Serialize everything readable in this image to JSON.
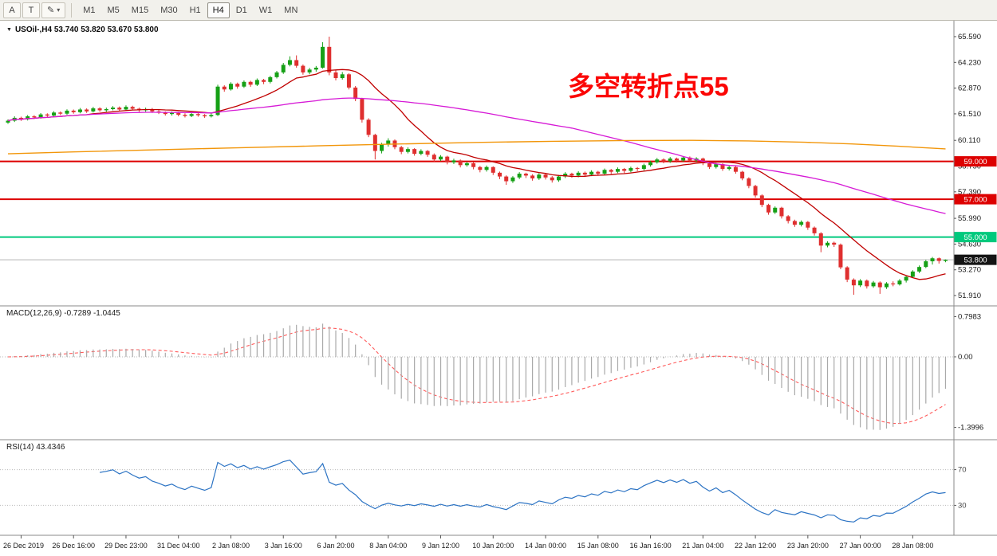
{
  "toolbar": {
    "tools": [
      {
        "label": "A"
      },
      {
        "label": "T"
      },
      {
        "label": "✎",
        "caret": "▾"
      }
    ],
    "timeframes": [
      {
        "label": "M1"
      },
      {
        "label": "M5"
      },
      {
        "label": "M15"
      },
      {
        "label": "M30"
      },
      {
        "label": "H1"
      },
      {
        "label": "H4",
        "active": true
      },
      {
        "label": "D1"
      },
      {
        "label": "W1"
      },
      {
        "label": "MN"
      }
    ]
  },
  "chart": {
    "collapse_icon": "▼",
    "symbol_line": "USOil-,H4 53.740 53.820 53.670 53.800",
    "annotation": {
      "text": "多空转折点55",
      "color": "#fb0605"
    },
    "price_axis_labels": [
      "65.590",
      "64.230",
      "62.870",
      "61.510",
      "60.110",
      "58.750",
      "57.390",
      "55.990",
      "54.630",
      "53.270",
      "51.910"
    ],
    "levels": [
      {
        "value": 59.0,
        "label": "59.000",
        "type": "resistance",
        "color": "#dd0000"
      },
      {
        "value": 57.0,
        "label": "57.000",
        "type": "resistance",
        "color": "#dd0000"
      },
      {
        "value": 55.0,
        "label": "55.000",
        "type": "support",
        "color": "#00c97d"
      }
    ],
    "current_price": {
      "value": 53.8,
      "label": "53.800",
      "line_color": "#b4b4b4",
      "badge_color": "#141414"
    }
  },
  "macd": {
    "label": "MACD(12,26,9) -0.7289 -1.0445",
    "params": "12,26,9",
    "values": [
      "-0.7289",
      "-1.0445"
    ],
    "scale": [
      "0.7983",
      "0.00",
      "-1.3996"
    ]
  },
  "rsi": {
    "label": "RSI(14) 43.4346",
    "value": "43.4346",
    "levels": [
      "70",
      "30"
    ]
  },
  "time_axis": {
    "labels": [
      "26 Dec 2019",
      "26 Dec 16:00",
      "29 Dec 23:00",
      "31 Dec 04:00",
      "2 Jan 08:00",
      "3 Jan 16:00",
      "6 Jan 20:00",
      "8 Jan 04:00",
      "9 Jan 12:00",
      "10 Jan 20:00",
      "14 Jan 00:00",
      "15 Jan 08:00",
      "16 Jan 16:00",
      "21 Jan 04:00",
      "22 Jan 12:00",
      "23 Jan 20:00",
      "27 Jan 00:00",
      "28 Jan 08:00"
    ]
  },
  "chart_data": {
    "type": "candlestick",
    "symbol": "USOil-",
    "timeframe": "H4",
    "price_range": [
      51.3,
      66.0
    ],
    "colors": {
      "up": "#16a016",
      "down": "#df2f2f",
      "macd_hist": "#a9a9a9",
      "macd_signal": "#ff5a5a",
      "rsi_line": "#2d74c4"
    },
    "indicators": {
      "macd": {
        "fast": 12,
        "slow": 26,
        "signal": 9
      },
      "rsi": {
        "period": 14
      }
    },
    "overlays": [
      {
        "name": "ma-fast",
        "type": "sma",
        "period": 13,
        "color": "#c00000"
      },
      {
        "name": "ma-mid",
        "type": "sma",
        "period": 55,
        "color": "#d619d6"
      },
      {
        "name": "ma-slow",
        "type": "points",
        "color": "#f2960a",
        "points": [
          [
            0,
            59.4
          ],
          [
            0.07,
            59.5
          ],
          [
            0.15,
            59.6
          ],
          [
            0.24,
            59.71
          ],
          [
            0.33,
            59.82
          ],
          [
            0.42,
            59.92
          ],
          [
            0.5,
            60.0
          ],
          [
            0.58,
            60.06
          ],
          [
            0.66,
            60.1
          ],
          [
            0.73,
            60.11
          ],
          [
            0.79,
            60.08
          ],
          [
            0.85,
            60.01
          ],
          [
            0.9,
            59.92
          ],
          [
            0.95,
            59.8
          ],
          [
            1.0,
            59.66
          ]
        ]
      }
    ],
    "ohlc": [
      [
        61.05,
        61.22,
        60.98,
        61.15
      ],
      [
        61.15,
        61.38,
        61.08,
        61.3
      ],
      [
        61.3,
        61.36,
        61.14,
        61.22
      ],
      [
        61.22,
        61.45,
        61.16,
        61.38
      ],
      [
        61.38,
        61.44,
        61.24,
        61.32
      ],
      [
        61.32,
        61.55,
        61.26,
        61.48
      ],
      [
        61.48,
        61.54,
        61.34,
        61.42
      ],
      [
        61.42,
        61.65,
        61.36,
        61.58
      ],
      [
        61.58,
        61.64,
        61.44,
        61.52
      ],
      [
        61.52,
        61.75,
        61.46,
        61.68
      ],
      [
        61.68,
        61.74,
        61.52,
        61.6
      ],
      [
        61.6,
        61.82,
        61.54,
        61.74
      ],
      [
        61.74,
        61.8,
        61.56,
        61.64
      ],
      [
        61.64,
        61.88,
        61.58,
        61.8
      ],
      [
        61.8,
        61.86,
        61.62,
        61.7
      ],
      [
        61.7,
        61.84,
        61.62,
        61.76
      ],
      [
        61.76,
        61.92,
        61.7,
        61.84
      ],
      [
        61.84,
        61.9,
        61.66,
        61.74
      ],
      [
        61.74,
        61.96,
        61.68,
        61.88
      ],
      [
        61.88,
        61.94,
        61.7,
        61.78
      ],
      [
        61.78,
        61.84,
        61.62,
        61.7
      ],
      [
        61.7,
        61.84,
        61.62,
        61.76
      ],
      [
        61.76,
        61.82,
        61.56,
        61.64
      ],
      [
        61.64,
        61.72,
        61.5,
        61.58
      ],
      [
        61.58,
        61.64,
        61.42,
        61.5
      ],
      [
        61.5,
        61.64,
        61.42,
        61.56
      ],
      [
        61.56,
        61.62,
        61.38,
        61.46
      ],
      [
        61.46,
        61.54,
        61.32,
        61.4
      ],
      [
        61.4,
        61.58,
        61.34,
        61.5
      ],
      [
        61.5,
        61.56,
        61.36,
        61.44
      ],
      [
        61.44,
        61.5,
        61.3,
        61.38
      ],
      [
        61.38,
        61.54,
        61.32,
        61.45
      ],
      [
        61.45,
        63.05,
        61.4,
        62.95
      ],
      [
        62.95,
        63.02,
        62.68,
        62.8
      ],
      [
        62.8,
        63.18,
        62.74,
        63.1
      ],
      [
        63.1,
        63.16,
        62.84,
        62.95
      ],
      [
        62.95,
        63.28,
        62.88,
        63.2
      ],
      [
        63.2,
        63.26,
        62.94,
        63.05
      ],
      [
        63.05,
        63.38,
        62.98,
        63.3
      ],
      [
        63.3,
        63.36,
        63.08,
        63.2
      ],
      [
        63.2,
        63.52,
        63.12,
        63.45
      ],
      [
        63.45,
        63.78,
        63.38,
        63.7
      ],
      [
        63.7,
        64.2,
        63.62,
        64.1
      ],
      [
        64.1,
        64.55,
        64.02,
        64.35
      ],
      [
        64.35,
        64.6,
        63.95,
        64.05
      ],
      [
        64.05,
        64.12,
        63.58,
        63.7
      ],
      [
        63.7,
        63.94,
        63.6,
        63.85
      ],
      [
        63.85,
        64.04,
        63.74,
        63.95
      ],
      [
        63.95,
        65.3,
        63.9,
        65.05
      ],
      [
        65.05,
        65.59,
        63.55,
        63.7
      ],
      [
        63.7,
        63.82,
        63.28,
        63.4
      ],
      [
        63.4,
        63.72,
        63.32,
        63.6
      ],
      [
        63.6,
        63.66,
        62.8,
        62.9
      ],
      [
        62.9,
        62.98,
        62.18,
        62.3
      ],
      [
        62.3,
        62.36,
        61.05,
        61.2
      ],
      [
        61.2,
        61.28,
        60.28,
        60.4
      ],
      [
        60.4,
        60.46,
        59.1,
        59.55
      ],
      [
        59.55,
        59.98,
        59.42,
        59.9
      ],
      [
        59.9,
        60.22,
        59.78,
        60.1
      ],
      [
        60.1,
        60.16,
        59.64,
        59.75
      ],
      [
        59.75,
        59.82,
        59.38,
        59.5
      ],
      [
        59.5,
        59.74,
        59.42,
        59.65
      ],
      [
        59.65,
        59.7,
        59.3,
        59.4
      ],
      [
        59.4,
        59.64,
        59.32,
        59.55
      ],
      [
        59.55,
        59.6,
        59.24,
        59.35
      ],
      [
        59.35,
        59.42,
        58.98,
        59.1
      ],
      [
        59.1,
        59.33,
        59.02,
        59.25
      ],
      [
        59.25,
        59.3,
        58.84,
        58.95
      ],
      [
        58.95,
        59.14,
        58.86,
        59.05
      ],
      [
        59.05,
        59.1,
        58.68,
        58.8
      ],
      [
        58.8,
        58.98,
        58.72,
        58.9
      ],
      [
        58.9,
        58.96,
        58.58,
        58.7
      ],
      [
        58.7,
        58.76,
        58.42,
        58.55
      ],
      [
        58.55,
        58.78,
        58.46,
        58.7
      ],
      [
        58.7,
        58.74,
        58.28,
        58.4
      ],
      [
        58.4,
        58.46,
        58.06,
        58.2
      ],
      [
        58.2,
        58.26,
        57.76,
        57.95
      ],
      [
        57.95,
        58.22,
        57.86,
        58.15
      ],
      [
        58.15,
        58.43,
        58.06,
        58.35
      ],
      [
        58.35,
        58.4,
        58.12,
        58.25
      ],
      [
        58.25,
        58.32,
        57.98,
        58.1
      ],
      [
        58.1,
        58.38,
        58.02,
        58.3
      ],
      [
        58.3,
        58.36,
        58.04,
        58.15
      ],
      [
        58.15,
        58.22,
        57.88,
        58.0
      ],
      [
        58.0,
        58.28,
        57.92,
        58.2
      ],
      [
        58.2,
        58.43,
        58.12,
        58.35
      ],
      [
        58.35,
        58.4,
        58.14,
        58.25
      ],
      [
        58.25,
        58.48,
        58.16,
        58.4
      ],
      [
        58.4,
        58.46,
        58.18,
        58.3
      ],
      [
        58.3,
        58.53,
        58.22,
        58.45
      ],
      [
        58.45,
        58.5,
        58.24,
        58.35
      ],
      [
        58.35,
        58.62,
        58.28,
        58.55
      ],
      [
        58.55,
        58.6,
        58.34,
        58.45
      ],
      [
        58.45,
        58.68,
        58.38,
        58.6
      ],
      [
        58.6,
        58.65,
        58.38,
        58.5
      ],
      [
        58.5,
        58.72,
        58.42,
        58.65
      ],
      [
        58.65,
        58.7,
        58.48,
        58.6
      ],
      [
        58.6,
        58.88,
        58.52,
        58.8
      ],
      [
        58.8,
        59.03,
        58.72,
        58.95
      ],
      [
        58.95,
        59.18,
        58.88,
        59.1
      ],
      [
        59.1,
        59.16,
        58.9,
        59.0
      ],
      [
        59.0,
        59.23,
        58.92,
        59.15
      ],
      [
        59.15,
        59.2,
        58.94,
        59.05
      ],
      [
        59.05,
        59.28,
        58.98,
        59.2
      ],
      [
        59.2,
        59.26,
        58.95,
        59.05
      ],
      [
        59.05,
        59.22,
        58.96,
        59.15
      ],
      [
        59.15,
        59.2,
        58.8,
        58.9
      ],
      [
        58.9,
        58.96,
        58.6,
        58.7
      ],
      [
        58.7,
        58.92,
        58.62,
        58.85
      ],
      [
        58.85,
        58.9,
        58.5,
        58.6
      ],
      [
        58.6,
        58.78,
        58.52,
        58.7
      ],
      [
        58.7,
        58.76,
        58.35,
        58.45
      ],
      [
        58.45,
        58.5,
        58.0,
        58.1
      ],
      [
        58.1,
        58.16,
        57.58,
        57.7
      ],
      [
        57.7,
        57.76,
        57.08,
        57.2
      ],
      [
        57.2,
        57.26,
        56.58,
        56.7
      ],
      [
        56.7,
        56.76,
        56.18,
        56.3
      ],
      [
        56.3,
        56.62,
        56.22,
        56.55
      ],
      [
        56.55,
        56.6,
        55.98,
        56.1
      ],
      [
        56.1,
        56.16,
        55.72,
        55.85
      ],
      [
        55.85,
        55.92,
        55.54,
        55.65
      ],
      [
        55.65,
        55.88,
        55.56,
        55.8
      ],
      [
        55.8,
        55.85,
        55.38,
        55.5
      ],
      [
        55.5,
        55.56,
        55.08,
        55.2
      ],
      [
        55.2,
        55.26,
        54.2,
        54.55
      ],
      [
        54.55,
        54.78,
        54.46,
        54.7
      ],
      [
        54.7,
        54.76,
        54.48,
        54.6
      ],
      [
        54.6,
        54.66,
        53.3,
        53.4
      ],
      [
        53.4,
        53.46,
        52.62,
        52.75
      ],
      [
        52.75,
        52.82,
        51.95,
        52.45
      ],
      [
        52.45,
        52.78,
        52.36,
        52.7
      ],
      [
        52.7,
        52.76,
        52.28,
        52.4
      ],
      [
        52.4,
        52.68,
        52.32,
        52.6
      ],
      [
        52.6,
        52.66,
        52.0,
        52.35
      ],
      [
        52.35,
        52.62,
        52.26,
        52.55
      ],
      [
        52.55,
        52.66,
        52.4,
        52.5
      ],
      [
        52.5,
        52.78,
        52.44,
        52.7
      ],
      [
        52.7,
        52.98,
        52.6,
        52.9
      ],
      [
        52.9,
        53.25,
        52.84,
        53.18
      ],
      [
        53.18,
        53.5,
        53.1,
        53.42
      ],
      [
        53.42,
        53.8,
        53.36,
        53.72
      ],
      [
        53.72,
        53.95,
        53.55,
        53.88
      ],
      [
        53.88,
        53.92,
        53.6,
        53.74
      ],
      [
        53.74,
        53.82,
        53.67,
        53.8
      ]
    ]
  }
}
